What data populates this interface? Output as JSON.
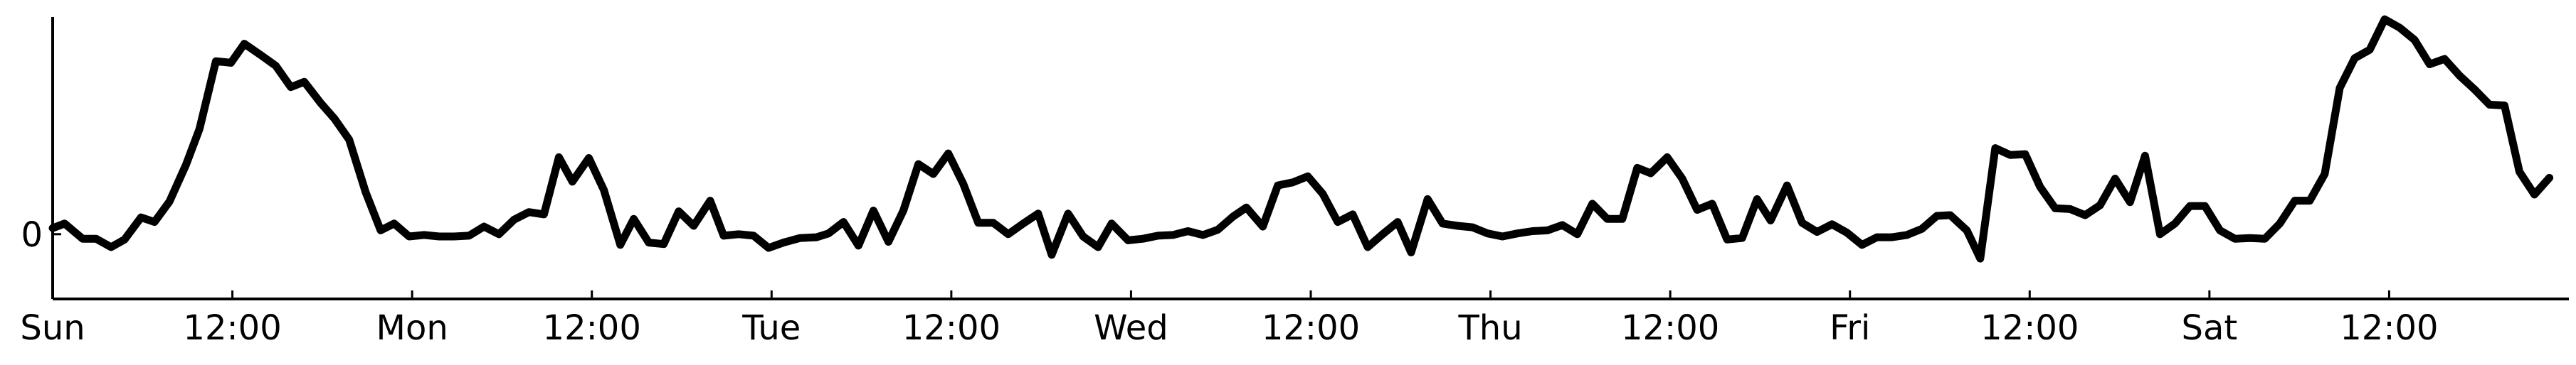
{
  "chart_data": {
    "type": "line",
    "title": "",
    "xlabel": "",
    "ylabel": "",
    "grid": false,
    "xlim": [
      0,
      168
    ],
    "ylim": [
      -0.85,
      2.85
    ],
    "x_ticks": [
      {
        "x": 0,
        "label": "Sun"
      },
      {
        "x": 12,
        "label": "12:00"
      },
      {
        "x": 24,
        "label": "Mon"
      },
      {
        "x": 36,
        "label": "12:00"
      },
      {
        "x": 48,
        "label": "Tue"
      },
      {
        "x": 60,
        "label": "12:00"
      },
      {
        "x": 72,
        "label": "Wed"
      },
      {
        "x": 84,
        "label": "12:00"
      },
      {
        "x": 96,
        "label": "Thu"
      },
      {
        "x": 108,
        "label": "12:00"
      },
      {
        "x": 120,
        "label": "Fri"
      },
      {
        "x": 132,
        "label": "12:00"
      },
      {
        "x": 144,
        "label": "Sat"
      },
      {
        "x": 156,
        "label": "12:00"
      }
    ],
    "y_ticks": [
      {
        "y": 0,
        "label": "0"
      }
    ],
    "series": [
      {
        "name": "",
        "color": "#000000",
        "points": [
          [
            0,
            0.08
          ],
          [
            0.8,
            0.14
          ],
          [
            2.0,
            -0.06
          ],
          [
            2.9,
            -0.06
          ],
          [
            3.9,
            -0.17
          ],
          [
            4.8,
            -0.07
          ],
          [
            5.9,
            0.22
          ],
          [
            6.8,
            0.16
          ],
          [
            7.8,
            0.43
          ],
          [
            8.9,
            0.91
          ],
          [
            9.8,
            1.38
          ],
          [
            10.9,
            2.27
          ],
          [
            11.9,
            2.25
          ],
          [
            12.8,
            2.5
          ],
          [
            13.9,
            2.35
          ],
          [
            14.9,
            2.21
          ],
          [
            15.9,
            1.93
          ],
          [
            16.8,
            2.0
          ],
          [
            17.9,
            1.72
          ],
          [
            18.8,
            1.52
          ],
          [
            19.8,
            1.24
          ],
          [
            20.9,
            0.55
          ],
          [
            21.9,
            0.05
          ],
          [
            22.8,
            0.14
          ],
          [
            23.8,
            -0.03
          ],
          [
            24.8,
            -0.01
          ],
          [
            25.8,
            -0.03
          ],
          [
            26.8,
            -0.03
          ],
          [
            27.8,
            -0.02
          ],
          [
            28.8,
            0.1
          ],
          [
            29.8,
            0.0
          ],
          [
            30.8,
            0.19
          ],
          [
            31.8,
            0.29
          ],
          [
            32.8,
            0.26
          ],
          [
            33.8,
            1.01
          ],
          [
            34.7,
            0.69
          ],
          [
            35.8,
            1.0
          ],
          [
            36.8,
            0.58
          ],
          [
            37.9,
            -0.14
          ],
          [
            38.8,
            0.2
          ],
          [
            39.8,
            -0.11
          ],
          [
            40.8,
            -0.13
          ],
          [
            41.8,
            0.3
          ],
          [
            42.8,
            0.11
          ],
          [
            43.9,
            0.44
          ],
          [
            44.8,
            -0.02
          ],
          [
            45.8,
            0.0
          ],
          [
            46.8,
            -0.02
          ],
          [
            47.8,
            -0.18
          ],
          [
            48.8,
            -0.11
          ],
          [
            49.9,
            -0.05
          ],
          [
            51.0,
            -0.04
          ],
          [
            51.8,
            0.01
          ],
          [
            52.8,
            0.16
          ],
          [
            53.8,
            -0.15
          ],
          [
            54.8,
            0.31
          ],
          [
            55.8,
            -0.1
          ],
          [
            56.8,
            0.31
          ],
          [
            57.8,
            0.92
          ],
          [
            58.8,
            0.79
          ],
          [
            59.8,
            1.06
          ],
          [
            60.8,
            0.66
          ],
          [
            61.8,
            0.15
          ],
          [
            62.8,
            0.15
          ],
          [
            63.8,
            0.0
          ],
          [
            64.8,
            0.14
          ],
          [
            65.8,
            0.27
          ],
          [
            66.7,
            -0.27
          ],
          [
            67.8,
            0.27
          ],
          [
            68.8,
            -0.03
          ],
          [
            69.8,
            -0.17
          ],
          [
            70.7,
            0.14
          ],
          [
            71.8,
            -0.08
          ],
          [
            72.8,
            -0.06
          ],
          [
            73.8,
            -0.02
          ],
          [
            74.8,
            -0.01
          ],
          [
            75.8,
            0.04
          ],
          [
            76.8,
            -0.01
          ],
          [
            77.8,
            0.06
          ],
          [
            78.8,
            0.23
          ],
          [
            79.7,
            0.35
          ],
          [
            80.8,
            0.1
          ],
          [
            81.8,
            0.64
          ],
          [
            82.8,
            0.68
          ],
          [
            83.8,
            0.76
          ],
          [
            84.8,
            0.53
          ],
          [
            85.8,
            0.16
          ],
          [
            86.8,
            0.26
          ],
          [
            87.8,
            -0.17
          ],
          [
            88.8,
            0.0
          ],
          [
            89.8,
            0.16
          ],
          [
            90.7,
            -0.24
          ],
          [
            91.8,
            0.46
          ],
          [
            92.8,
            0.14
          ],
          [
            93.8,
            0.11
          ],
          [
            94.8,
            0.09
          ],
          [
            95.8,
            0.01
          ],
          [
            96.8,
            -0.03
          ],
          [
            97.8,
            0.01
          ],
          [
            98.8,
            0.04
          ],
          [
            99.8,
            0.05
          ],
          [
            100.8,
            0.12
          ],
          [
            101.8,
            0.0
          ],
          [
            102.8,
            0.4
          ],
          [
            103.8,
            0.2
          ],
          [
            104.8,
            0.2
          ],
          [
            105.8,
            0.87
          ],
          [
            106.7,
            0.8
          ],
          [
            107.8,
            1.01
          ],
          [
            108.8,
            0.73
          ],
          [
            109.8,
            0.32
          ],
          [
            110.8,
            0.4
          ],
          [
            111.8,
            -0.07
          ],
          [
            112.8,
            -0.05
          ],
          [
            113.8,
            0.46
          ],
          [
            114.7,
            0.18
          ],
          [
            115.8,
            0.64
          ],
          [
            116.8,
            0.15
          ],
          [
            117.8,
            0.03
          ],
          [
            118.8,
            0.13
          ],
          [
            119.8,
            0.02
          ],
          [
            120.8,
            -0.14
          ],
          [
            121.8,
            -0.04
          ],
          [
            122.8,
            -0.04
          ],
          [
            123.8,
            -0.01
          ],
          [
            124.8,
            0.07
          ],
          [
            125.8,
            0.24
          ],
          [
            126.7,
            0.25
          ],
          [
            127.8,
            0.05
          ],
          [
            128.7,
            -0.32
          ],
          [
            129.7,
            1.13
          ],
          [
            130.7,
            1.04
          ],
          [
            131.7,
            1.05
          ],
          [
            132.7,
            0.62
          ],
          [
            133.7,
            0.34
          ],
          [
            134.7,
            0.33
          ],
          [
            135.7,
            0.25
          ],
          [
            136.7,
            0.38
          ],
          [
            137.7,
            0.73
          ],
          [
            138.7,
            0.42
          ],
          [
            139.7,
            1.03
          ],
          [
            140.7,
            0.0
          ],
          [
            141.7,
            0.14
          ],
          [
            142.7,
            0.37
          ],
          [
            143.7,
            0.37
          ],
          [
            144.7,
            0.05
          ],
          [
            145.7,
            -0.06
          ],
          [
            146.7,
            -0.05
          ],
          [
            147.7,
            -0.06
          ],
          [
            148.7,
            0.14
          ],
          [
            149.7,
            0.44
          ],
          [
            150.7,
            0.44
          ],
          [
            151.7,
            0.79
          ],
          [
            152.7,
            1.92
          ],
          [
            153.7,
            2.31
          ],
          [
            154.7,
            2.42
          ],
          [
            155.7,
            2.82
          ],
          [
            156.7,
            2.71
          ],
          [
            157.7,
            2.55
          ],
          [
            158.7,
            2.23
          ],
          [
            159.7,
            2.3
          ],
          [
            160.7,
            2.08
          ],
          [
            161.7,
            1.9
          ],
          [
            162.7,
            1.7
          ],
          [
            163.7,
            1.69
          ],
          [
            164.7,
            0.82
          ],
          [
            165.7,
            0.52
          ],
          [
            166.7,
            0.74
          ]
        ]
      }
    ]
  }
}
